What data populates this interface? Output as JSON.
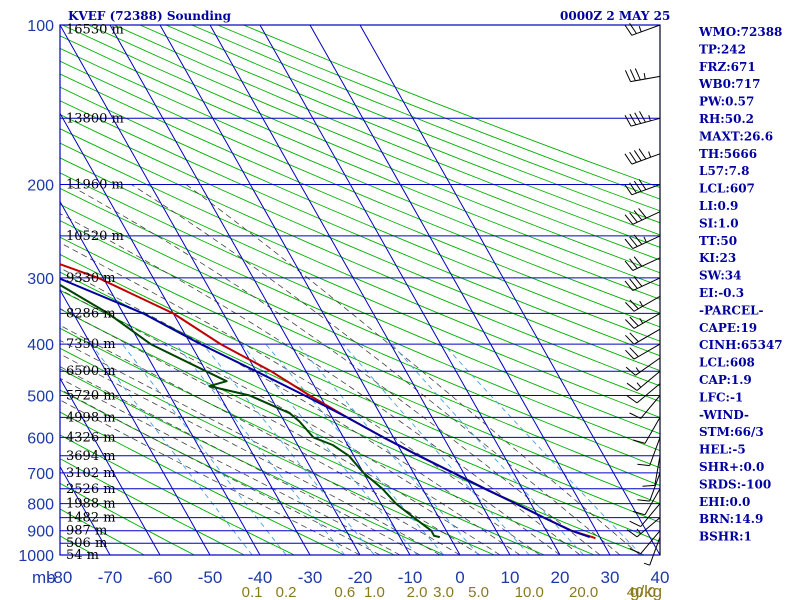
{
  "header": {
    "station": "KVEF (72388) Sounding",
    "time": "0000Z  2 MAY 25"
  },
  "chart_data": {
    "type": "line",
    "title": "KVEF (72388) Sounding",
    "subtitle": "0000Z  2 MAY 25",
    "y_axis_unit": "mb",
    "x_axis_unit": "g/kg",
    "xlim": [
      -80,
      40
    ],
    "ylim": [
      1000,
      100
    ],
    "y_scale": "log",
    "pressure_levels": [
      100,
      200,
      300,
      400,
      500,
      600,
      700,
      800,
      900,
      1000
    ],
    "temperature_ticks": [
      -80,
      -70,
      -60,
      -50,
      -40,
      -30,
      -20,
      -10,
      0,
      10,
      20,
      30,
      40
    ],
    "mixing_ratio_labels": [
      "0.1",
      "0.2",
      "0.6",
      "1.0",
      "2.0",
      "3.0",
      "5.0",
      "10.0",
      "20.0",
      "40.0"
    ],
    "mixing_ratio_values": [
      0.1,
      0.2,
      0.6,
      1.0,
      2.0,
      3.0,
      5.0,
      10.0,
      20.0,
      40.0
    ],
    "height_labels": [
      {
        "label": "16530 m",
        "p": 102
      },
      {
        "label": "13800 m",
        "p": 150
      },
      {
        "label": "11960 m",
        "p": 200
      },
      {
        "label": "10520 m",
        "p": 250
      },
      {
        "label": "9330 m",
        "p": 300
      },
      {
        "label": "8286 m",
        "p": 350
      },
      {
        "label": "7350 m",
        "p": 400
      },
      {
        "label": "6500 m",
        "p": 450
      },
      {
        "label": "5720 m",
        "p": 500
      },
      {
        "label": "4998 m",
        "p": 550
      },
      {
        "label": "4326 m",
        "p": 600
      },
      {
        "label": "3694 m",
        "p": 650
      },
      {
        "label": "3102 m",
        "p": 700
      },
      {
        "label": "2526 m",
        "p": 750
      },
      {
        "label": "1988 m",
        "p": 800
      },
      {
        "label": "1482 m",
        "p": 850
      },
      {
        "label": "987 m",
        "p": 900
      },
      {
        "label": "506 m",
        "p": 950
      },
      {
        "label": "54 m",
        "p": 1000
      }
    ],
    "series": [
      {
        "name": "",
        "color": "#c00000",
        "points": [
          [
            100,
            -65
          ],
          [
            120,
            -61
          ],
          [
            135,
            -57
          ],
          [
            150,
            -55
          ],
          [
            165,
            -53
          ],
          [
            180,
            -54
          ],
          [
            200,
            -54
          ],
          [
            220,
            -55
          ],
          [
            250,
            -53
          ],
          [
            280,
            -48
          ],
          [
            300,
            -41
          ],
          [
            350,
            -30
          ],
          [
            400,
            -24
          ],
          [
            450,
            -17
          ],
          [
            500,
            -12
          ],
          [
            550,
            -7
          ],
          [
            600,
            -2
          ],
          [
            650,
            3
          ],
          [
            700,
            8
          ],
          [
            750,
            12.5
          ],
          [
            800,
            17
          ],
          [
            850,
            21
          ],
          [
            900,
            25
          ],
          [
            925,
            28.5
          ],
          [
            930,
            29
          ]
        ]
      },
      {
        "name": "",
        "color": "#004400",
        "points": [
          [
            130,
            -80
          ],
          [
            150,
            -76
          ],
          [
            170,
            -72
          ],
          [
            190,
            -71
          ],
          [
            200,
            -69
          ],
          [
            220,
            -68
          ],
          [
            250,
            -62
          ],
          [
            280,
            -56
          ],
          [
            300,
            -51
          ],
          [
            350,
            -43
          ],
          [
            400,
            -38
          ],
          [
            450,
            -30
          ],
          [
            470,
            -27
          ],
          [
            480,
            -31
          ],
          [
            500,
            -24
          ],
          [
            540,
            -18
          ],
          [
            560,
            -17
          ],
          [
            600,
            -16
          ],
          [
            620,
            -13
          ],
          [
            650,
            -11
          ],
          [
            700,
            -10
          ],
          [
            750,
            -8
          ],
          [
            800,
            -7
          ],
          [
            850,
            -5
          ],
          [
            900,
            -3
          ],
          [
            920,
            -3
          ],
          [
            925,
            -2
          ]
        ]
      },
      {
        "name": "",
        "color": "#0000a0",
        "points": [
          [
            175,
            -79
          ],
          [
            200,
            -72
          ],
          [
            250,
            -64
          ],
          [
            300,
            -49
          ],
          [
            350,
            -36
          ],
          [
            400,
            -28
          ],
          [
            450,
            -20
          ],
          [
            500,
            -13
          ],
          [
            550,
            -7
          ],
          [
            600,
            -2
          ],
          [
            650,
            3
          ],
          [
            700,
            8
          ],
          [
            750,
            12.5
          ],
          [
            800,
            17
          ],
          [
            850,
            21
          ],
          [
            900,
            25
          ],
          [
            925,
            28
          ]
        ]
      }
    ],
    "wind_barbs": [
      {
        "p": 100,
        "dir": 250,
        "spd": 25
      },
      {
        "p": 125,
        "dir": 260,
        "spd": 35
      },
      {
        "p": 150,
        "dir": 255,
        "spd": 45
      },
      {
        "p": 175,
        "dir": 250,
        "spd": 45
      },
      {
        "p": 200,
        "dir": 250,
        "spd": 40
      },
      {
        "p": 225,
        "dir": 245,
        "spd": 40
      },
      {
        "p": 250,
        "dir": 245,
        "spd": 35
      },
      {
        "p": 275,
        "dir": 245,
        "spd": 30
      },
      {
        "p": 300,
        "dir": 245,
        "spd": 30
      },
      {
        "p": 325,
        "dir": 240,
        "spd": 25
      },
      {
        "p": 350,
        "dir": 240,
        "spd": 25
      },
      {
        "p": 375,
        "dir": 240,
        "spd": 20
      },
      {
        "p": 400,
        "dir": 240,
        "spd": 20
      },
      {
        "p": 425,
        "dir": 235,
        "spd": 15
      },
      {
        "p": 450,
        "dir": 230,
        "spd": 15
      },
      {
        "p": 475,
        "dir": 230,
        "spd": 10
      },
      {
        "p": 500,
        "dir": 220,
        "spd": 10
      },
      {
        "p": 550,
        "dir": 210,
        "spd": 10
      },
      {
        "p": 600,
        "dir": 200,
        "spd": 10
      },
      {
        "p": 650,
        "dir": 190,
        "spd": 10
      },
      {
        "p": 700,
        "dir": 200,
        "spd": 10
      },
      {
        "p": 750,
        "dir": 210,
        "spd": 10
      },
      {
        "p": 800,
        "dir": 220,
        "spd": 10
      },
      {
        "p": 850,
        "dir": 230,
        "spd": 15
      },
      {
        "p": 900,
        "dir": 220,
        "spd": 10
      },
      {
        "p": 925,
        "dir": 200,
        "spd": 5
      }
    ]
  },
  "indices": [
    "WMO:72388",
    "TP:242",
    "FRZ:671",
    "WB0:717",
    "PW:0.57",
    "RH:50.2",
    "MAXT:26.6",
    "TH:5666",
    "L57:7.8",
    "LCL:607",
    "LI:0.9",
    "SI:1.0",
    "TT:50",
    "KI:23",
    "SW:34",
    "EI:-0.3",
    "-PARCEL-",
    "CAPE:19",
    "CINH:65347",
    "LCL:608",
    "CAP:1.9",
    "LFC:-1",
    "-WIND-",
    "STM:66/3",
    "HEL:-5",
    "SHR+:0.0",
    "SRDS:-100",
    "EHI:0.0",
    "BRN:14.9",
    "BSHR:1"
  ],
  "colors": {
    "grid": "#0000c0",
    "dry_adiabat": "#00b000",
    "moist_adiabat": "#444444",
    "mixing_ratio": "#4aa0e0",
    "temperature": "#c00000",
    "dewpoint": "#004400",
    "parcel": "#0000a0",
    "axis_text": "#1c3aa6",
    "mixing_text": "#8a7a1e",
    "header_text": "#0000a0"
  }
}
